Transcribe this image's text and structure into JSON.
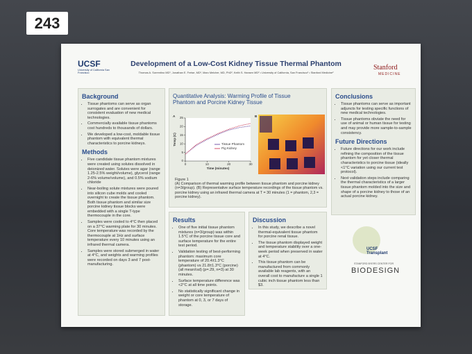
{
  "board_number": "243",
  "header": {
    "logo_left": "UCSF",
    "logo_left_sub": "University of California San Francisco",
    "title": "Development of a Low-Cost Kidney Tissue Thermal Phantom",
    "authors": "Thomas A. Sorrentino MD¹, Jonathan E. Freise, MD¹, Marc Melcher, MD, PhD², Keith S. Hansen MD² • University of California, San Francisco¹ • Stanford Medicine²",
    "logo_right": "Stanford",
    "logo_right_sub": "MEDICINE"
  },
  "background": {
    "heading": "Background",
    "bullets": [
      "Tissue phantoms can serve as organ surrogates and are convenient for consistent evaluation of new medical technologies.",
      "Commercially available tissue phantoms cost hundreds to thousands of dollars.",
      "We developed a low-cost, moldable tissue phantom with equivalent thermal characteristics to porcine kidneys."
    ]
  },
  "methods": {
    "heading": "Methods",
    "bullets": [
      "Five candidate tissue phantom mixtures were created using solutes dissolved in deionized water. Solutes were agar (range 1.25-2.5% weight/volume), glycerol (range 2-6% volume/volume), and 0.5% sodium chloride",
      "Near-boiling solute mixtures were poured into silicon cube molds and cooled overnight to create the tissue phantom. Both tissue phantom and similar size porcine kidney tissue blocks were embedded with a single T-type thermocouple in the core.",
      "Samples were cooled to 4°C then placed on a 37°C warming plate for 30 minutes. Core temperature was recorded by the thermocouple at 1Hz and surface temperature every 10 minutes using an infrared thermal camera.",
      "Samples were stored submerged in water at 4°C, and weights and warming profiles were recorded on days 3 and 7 post-manufacturing."
    ]
  },
  "figure": {
    "heading": "Quantitative Analysis: Warming Profile of Tissue Phantom and Porcine Kidney Tissue",
    "panel_a": "A",
    "panel_b": "B",
    "caption_title": "Figure 1",
    "caption": "(A) Comparison of thermal warming profile between tissue phantom and porcine kidney (n=3/group). (B) Representative surface temperature recordings of the tissue phantom vs. porcine kidney using an infrared thermal camera at T = 30 minutes (1 = phantom, 2,3 = porcine kidney).",
    "chart_data": {
      "type": "line",
      "x_label": "Time (minutes)",
      "y_label": "Temp (C)",
      "x": [
        0,
        5,
        10,
        15,
        20,
        25,
        30
      ],
      "series": [
        {
          "name": "Tissue Phantom",
          "color": "#7a5aa8",
          "values": [
            4,
            9,
            12.5,
            15.5,
            18,
            19.5,
            20.4
          ]
        },
        {
          "name": "Pig Kidney",
          "color": "#d0506a",
          "values": [
            4,
            9.5,
            13,
            16,
            18.5,
            20.5,
            21.8
          ]
        }
      ],
      "xlim": [
        0,
        30
      ],
      "ylim": [
        0,
        25
      ],
      "xticks": [
        0,
        10,
        20,
        30
      ],
      "yticks": [
        0,
        5,
        10,
        15,
        20,
        25
      ]
    }
  },
  "results": {
    "heading": "Results",
    "bullets": [
      "One of five initial tissue phantom mixtures (n=3/group) was within 1.5°C of the porcine tissue core and surface temperature for the entire test period.",
      "Validation testing of best-performing phantom: maximum core temperature of 20.4±1.3°C (phantom) vs 21.8±1.3°C (porcine) (all mean±sd) (p=.29, n=3) at 30 minutes.",
      "Surface temperature difference was <2°C at all time points.",
      "No statistically significant change in weight or core temperature of phantom at 0, 3, or 7 days of storage."
    ]
  },
  "discussion": {
    "heading": "Discussion",
    "bullets": [
      "In this study, we describe a novel thermal-equivalent tissue phantom for porcine renal tissue.",
      "The tissue phantom displayed weight and temperature stability over a one-week period when preserved in water at 4°C.",
      "This tissue phantom can be manufactured from commonly available lab reagents, with an overall cost to manufacture a single 1 cubic inch tissue phantom less than $3."
    ]
  },
  "conclusions": {
    "heading": "Conclusions",
    "bullets": [
      "Tissue phantoms can serve as important adjuncts for testing specific functions of new medical technologies.",
      "Tissue phantoms obviate the need for use of animal or human tissue for testing and may provide more sample-to-sample consistency."
    ]
  },
  "future_directions": {
    "heading": "Future Directions",
    "bullets": [
      "Future directions for our work include refining the composition of the tissue phantom for yet closer thermal characteristics to porcine tissue (ideally <1°C variation using our current test protocol).",
      "Next validation steps include comparing the thermal characteristics of a larger tissue phantom molded into the size and shape of a porcine kidney to those of an actual porcine kidney."
    ]
  },
  "footer": {
    "transplant": "UCSF Transplant",
    "byers": "STANFORD BYERS CENTER FOR",
    "biodesign": "BIODESIGN"
  }
}
